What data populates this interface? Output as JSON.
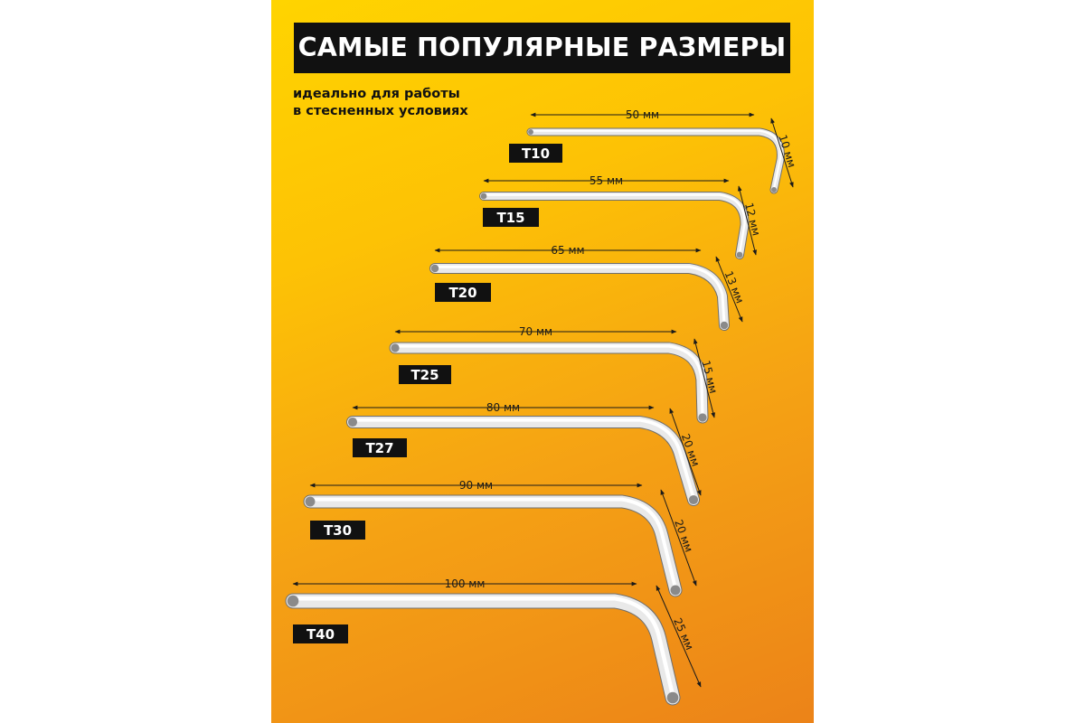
{
  "title": "САМЫЕ ПОПУЛЯРНЫЕ РАЗМЕРЫ",
  "subtitle": {
    "line1": "идеально для работы",
    "line2": "в стесненных условиях"
  },
  "wrenches": [
    {
      "label": "T10",
      "long": "50 мм",
      "short": "10 мм"
    },
    {
      "label": "T15",
      "long": "55 мм",
      "short": "12 мм"
    },
    {
      "label": "T20",
      "long": "65 мм",
      "short": "13 мм"
    },
    {
      "label": "T25",
      "long": "70 мм",
      "short": "15 мм"
    },
    {
      "label": "T27",
      "long": "80 мм",
      "short": "20 мм"
    },
    {
      "label": "T30",
      "long": "90 мм",
      "short": "20 мм"
    },
    {
      "label": "T40",
      "long": "100 мм",
      "short": "25 мм"
    }
  ],
  "colors": {
    "background_top": "#ffd400",
    "background_bottom": "#ec8318",
    "title_bg": "#111111",
    "title_text": "#ffffff",
    "label_bg": "#111111",
    "steel_light": "#f7f7f7",
    "steel_dark": "#9a9a9a"
  }
}
